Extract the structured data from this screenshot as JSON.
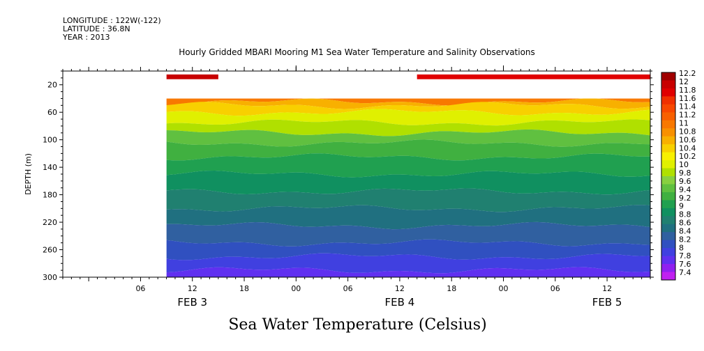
{
  "header": {
    "longitude": "LONGITUDE : 122W(-122)",
    "latitude": "LATITUDE : 36.8N",
    "year": "YEAR : 2013"
  },
  "chart_data": {
    "type": "heatmap",
    "title": "Hourly Gridded MBARI Mooring M1 Sea Water Temperature and Salinity Observations",
    "bottom_title": "Sea Water Temperature (Celsius)",
    "ylabel": "DEPTH (m)",
    "xlabel": "",
    "y_reversed": true,
    "ylim": [
      300,
      0
    ],
    "y_ticks": [
      "20",
      "60",
      "100",
      "140",
      "180",
      "220",
      "260",
      "300"
    ],
    "y_tick_values": [
      20,
      60,
      100,
      140,
      180,
      220,
      260,
      300
    ],
    "x_range_hours": [
      "2013-02-02T21:00",
      "2013-02-05T17:00"
    ],
    "x_ticks": [
      "06",
      "12",
      "18",
      "00",
      "06",
      "12",
      "18",
      "00",
      "06",
      "12"
    ],
    "x_tick_times": [
      "2013-02-03T06:00",
      "2013-02-03T12:00",
      "2013-02-03T18:00",
      "2013-02-04T00:00",
      "2013-02-04T06:00",
      "2013-02-04T12:00",
      "2013-02-04T18:00",
      "2013-02-05T00:00",
      "2013-02-05T06:00",
      "2013-02-05T12:00"
    ],
    "date_labels": [
      "FEB  3",
      "FEB  4",
      "FEB  5"
    ],
    "date_label_times": [
      "2013-02-03T12:00",
      "2013-02-04T12:00",
      "2013-02-05T12:00"
    ],
    "data_start": "2013-02-03T09:00",
    "colorbar": {
      "labels": [
        "12.2",
        "12",
        "11.8",
        "11.6",
        "11.4",
        "11.2",
        "11",
        "10.8",
        "10.6",
        "10.4",
        "10.2",
        "10",
        "9.8",
        "9.6",
        "9.4",
        "9.2",
        "9",
        "8.8",
        "8.6",
        "8.4",
        "8.2",
        "8",
        "7.8",
        "7.6",
        "7.4"
      ],
      "colors": [
        "#a00000",
        "#c80000",
        "#e00000",
        "#f03000",
        "#f84800",
        "#f86000",
        "#f87800",
        "#f89000",
        "#f8b000",
        "#f8d000",
        "#f8f000",
        "#e0f000",
        "#b0e000",
        "#88d040",
        "#60c040",
        "#40b040",
        "#20a050",
        "#109060",
        "#208070",
        "#207080",
        "#3060a0",
        "#3050c0",
        "#4040e0",
        "#6030f0",
        "#9020f0",
        "#c020f0"
      ]
    },
    "surface_values": [
      {
        "time": "2013-02-03T09:00",
        "value": 12.0
      },
      {
        "time": "2013-02-03T15:00",
        "value": 12.0
      },
      {
        "time": "2013-02-04T14:00",
        "value": 11.8
      },
      {
        "time": "2013-02-05T17:00",
        "value": 11.8
      }
    ],
    "profile": [
      {
        "depth": 40,
        "value": 11.0
      },
      {
        "depth": 45,
        "value": 10.7
      },
      {
        "depth": 50,
        "value": 10.4
      },
      {
        "depth": 60,
        "value": 10.1
      },
      {
        "depth": 75,
        "value": 9.8
      },
      {
        "depth": 90,
        "value": 9.5
      },
      {
        "depth": 105,
        "value": 9.3
      },
      {
        "depth": 125,
        "value": 9.1
      },
      {
        "depth": 150,
        "value": 8.9
      },
      {
        "depth": 175,
        "value": 8.7
      },
      {
        "depth": 200,
        "value": 8.5
      },
      {
        "depth": 225,
        "value": 8.3
      },
      {
        "depth": 250,
        "value": 8.1
      },
      {
        "depth": 270,
        "value": 7.9
      },
      {
        "depth": 290,
        "value": 7.7
      },
      {
        "depth": 300,
        "value": 7.6
      }
    ]
  }
}
